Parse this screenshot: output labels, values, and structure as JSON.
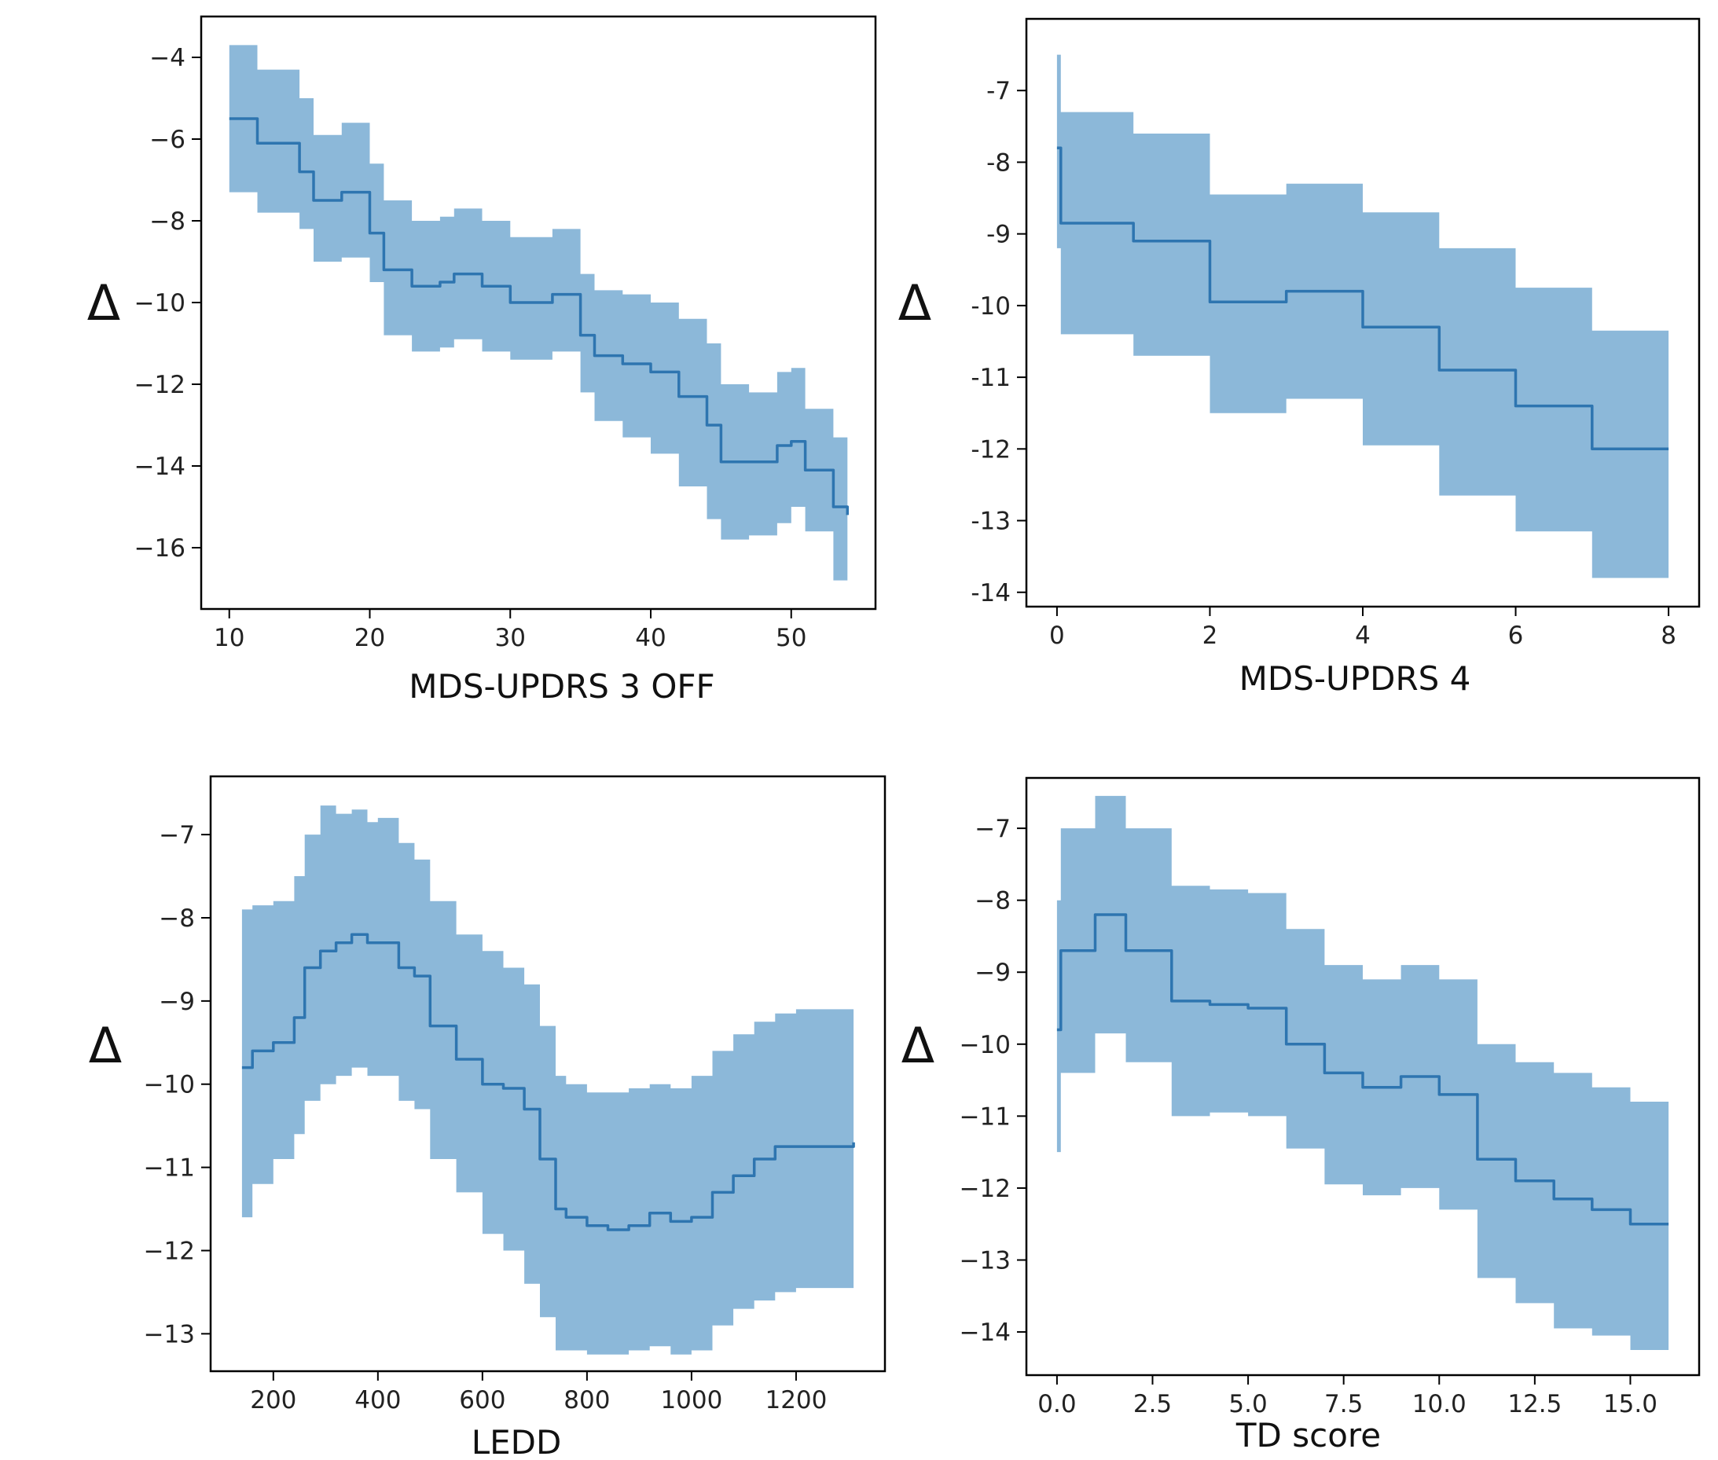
{
  "chart_data": [
    {
      "type": "line",
      "xlabel": "MDS-UPDRS 3 OFF",
      "ylabel": "Δ",
      "xlim": [
        8,
        56
      ],
      "ylim": [
        -17.5,
        -3.0
      ],
      "xticks": [
        10,
        20,
        30,
        40,
        50
      ],
      "yticks": [
        -4,
        -6,
        -8,
        -10,
        -12,
        -14,
        -16
      ],
      "ytick_labels": [
        "−4",
        "−6",
        "−8",
        "−10",
        "−12",
        "−14",
        "−16"
      ],
      "series": [
        {
          "x": [
            10,
            12,
            15,
            16,
            18,
            20,
            21,
            23,
            25,
            26,
            28,
            30,
            33,
            35,
            36,
            38,
            40,
            42,
            44,
            45,
            47,
            49,
            50,
            51,
            53,
            54
          ],
          "y": [
            -5.5,
            -6.1,
            -6.8,
            -7.5,
            -7.3,
            -8.3,
            -9.2,
            -9.6,
            -9.5,
            -9.3,
            -9.6,
            -10.0,
            -9.8,
            -10.8,
            -11.3,
            -11.5,
            -11.7,
            -12.3,
            -13.0,
            -13.9,
            -13.9,
            -13.5,
            -13.4,
            -14.1,
            -15.0,
            -15.2
          ],
          "lower": [
            -7.3,
            -7.8,
            -8.2,
            -9.0,
            -8.9,
            -9.5,
            -10.8,
            -11.2,
            -11.1,
            -10.9,
            -11.2,
            -11.4,
            -11.2,
            -12.2,
            -12.9,
            -13.3,
            -13.7,
            -14.5,
            -15.3,
            -15.8,
            -15.7,
            -15.4,
            -15.0,
            -15.6,
            -16.8,
            -16.9
          ],
          "upper": [
            -3.7,
            -4.3,
            -5.0,
            -5.9,
            -5.6,
            -6.6,
            -7.5,
            -8.0,
            -7.9,
            -7.7,
            -8.0,
            -8.4,
            -8.2,
            -9.3,
            -9.7,
            -9.8,
            -10.0,
            -10.4,
            -11.0,
            -12.0,
            -12.2,
            -11.7,
            -11.6,
            -12.6,
            -13.3,
            -13.4
          ]
        }
      ],
      "style": {
        "line_color": "#2e75b0",
        "fill_color": "#8cb8d9"
      }
    },
    {
      "type": "line",
      "xlabel": "MDS-UPDRS 4",
      "ylabel": "Δ",
      "xlim": [
        -0.4,
        8.4
      ],
      "ylim": [
        -14.2,
        -6.0
      ],
      "xticks": [
        0,
        2,
        4,
        6,
        8
      ],
      "yticks": [
        -7,
        -8,
        -9,
        -10,
        -11,
        -12,
        -13,
        -14
      ],
      "ytick_labels": [
        "-7",
        "-8",
        "-9",
        "-10",
        "-11",
        "-12",
        "-13",
        "-14"
      ],
      "series": [
        {
          "x": [
            0.0,
            0.05,
            1,
            2,
            3,
            4,
            5,
            6,
            7,
            8
          ],
          "y": [
            -7.8,
            -8.85,
            -9.1,
            -9.95,
            -9.8,
            -10.3,
            -10.9,
            -11.4,
            -12.0,
            -12.0
          ],
          "lower": [
            -9.2,
            -10.4,
            -10.7,
            -11.5,
            -11.3,
            -11.95,
            -12.65,
            -13.15,
            -13.8,
            -13.8
          ],
          "upper": [
            -6.5,
            -7.3,
            -7.6,
            -8.45,
            -8.3,
            -8.7,
            -9.2,
            -9.75,
            -10.35,
            -10.35
          ]
        }
      ],
      "style": {
        "line_color": "#2e75b0",
        "fill_color": "#8cb8d9"
      }
    },
    {
      "type": "line",
      "xlabel": "LEDD",
      "ylabel": "Δ",
      "xlim": [
        80,
        1370
      ],
      "ylim": [
        -13.45,
        -6.3
      ],
      "xticks": [
        200,
        400,
        600,
        800,
        1000,
        1200
      ],
      "yticks": [
        -7,
        -8,
        -9,
        -10,
        -11,
        -12,
        -13
      ],
      "ytick_labels": [
        "−7",
        "−8",
        "−9",
        "−10",
        "−11",
        "−12",
        "−13"
      ],
      "series": [
        {
          "x": [
            140,
            160,
            200,
            240,
            260,
            290,
            320,
            350,
            380,
            400,
            440,
            470,
            500,
            550,
            600,
            640,
            680,
            710,
            740,
            760,
            800,
            840,
            880,
            920,
            960,
            1000,
            1040,
            1080,
            1120,
            1160,
            1200,
            1240,
            1280,
            1310
          ],
          "y": [
            -9.8,
            -9.6,
            -9.5,
            -9.2,
            -8.6,
            -8.4,
            -8.3,
            -8.2,
            -8.3,
            -8.3,
            -8.6,
            -8.7,
            -9.3,
            -9.7,
            -10.0,
            -10.05,
            -10.3,
            -10.9,
            -11.5,
            -11.6,
            -11.7,
            -11.75,
            -11.7,
            -11.55,
            -11.65,
            -11.6,
            -11.3,
            -11.1,
            -10.9,
            -10.75,
            -10.75,
            -10.75,
            -10.75,
            -10.7
          ],
          "lower": [
            -11.6,
            -11.2,
            -10.9,
            -10.6,
            -10.2,
            -10.0,
            -9.9,
            -9.8,
            -9.9,
            -9.9,
            -10.2,
            -10.3,
            -10.9,
            -11.3,
            -11.8,
            -12.0,
            -12.4,
            -12.8,
            -13.2,
            -13.2,
            -13.25,
            -13.25,
            -13.2,
            -13.15,
            -13.25,
            -13.2,
            -12.9,
            -12.7,
            -12.6,
            -12.5,
            -12.45,
            -12.45,
            -12.45,
            -12.4
          ],
          "upper": [
            -7.9,
            -7.85,
            -7.8,
            -7.5,
            -7.0,
            -6.65,
            -6.75,
            -6.7,
            -6.85,
            -6.8,
            -7.1,
            -7.3,
            -7.8,
            -8.2,
            -8.4,
            -8.6,
            -8.8,
            -9.3,
            -9.9,
            -10.0,
            -10.1,
            -10.1,
            -10.05,
            -10.0,
            -10.05,
            -9.9,
            -9.6,
            -9.4,
            -9.25,
            -9.15,
            -9.1,
            -9.1,
            -9.1,
            -9.05
          ]
        }
      ],
      "style": {
        "line_color": "#2e75b0",
        "fill_color": "#8cb8d9"
      }
    },
    {
      "type": "line",
      "xlabel": "TD score",
      "ylabel": "Δ",
      "xlim": [
        -0.8,
        16.8
      ],
      "ylim": [
        -14.6,
        -6.3
      ],
      "xticks": [
        0,
        2.5,
        5,
        7.5,
        10,
        12.5,
        15
      ],
      "xtick_labels": [
        "0.0",
        "2.5",
        "5.0",
        "7.5",
        "10.0",
        "12.5",
        "15.0"
      ],
      "yticks": [
        -7,
        -8,
        -9,
        -10,
        -11,
        -12,
        -13,
        -14
      ],
      "ytick_labels": [
        "−7",
        "−8",
        "−9",
        "−10",
        "−11",
        "−12",
        "−13",
        "−14"
      ],
      "series": [
        {
          "x": [
            0.0,
            0.1,
            1,
            1.8,
            3,
            4,
            5,
            6,
            7,
            8,
            9,
            10,
            11,
            12,
            13,
            14,
            15,
            16
          ],
          "y": [
            -9.8,
            -8.7,
            -8.2,
            -8.7,
            -9.4,
            -9.45,
            -9.5,
            -10.0,
            -10.4,
            -10.6,
            -10.45,
            -10.7,
            -11.6,
            -11.9,
            -12.15,
            -12.3,
            -12.5,
            -12.5
          ],
          "lower": [
            -11.5,
            -10.4,
            -9.85,
            -10.25,
            -11.0,
            -10.95,
            -11.0,
            -11.45,
            -11.95,
            -12.1,
            -12.0,
            -12.3,
            -13.25,
            -13.6,
            -13.95,
            -14.05,
            -14.25,
            -14.25
          ],
          "upper": [
            -8.0,
            -7.0,
            -6.55,
            -7.0,
            -7.8,
            -7.85,
            -7.9,
            -8.4,
            -8.9,
            -9.1,
            -8.9,
            -9.1,
            -10.0,
            -10.25,
            -10.4,
            -10.6,
            -10.8,
            -10.8
          ]
        }
      ],
      "style": {
        "line_color": "#2e75b0",
        "fill_color": "#8cb8d9"
      }
    }
  ]
}
